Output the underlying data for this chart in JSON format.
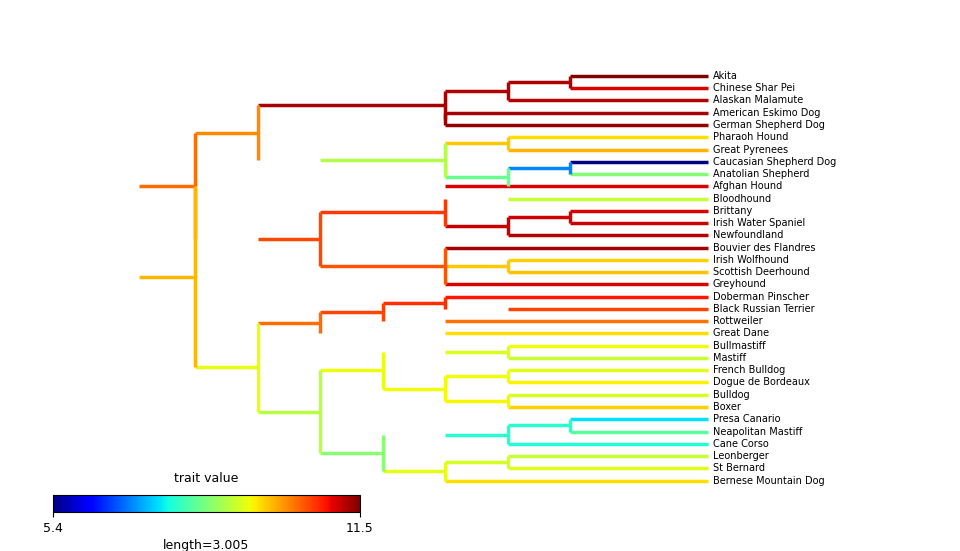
{
  "breeds": [
    "Akita",
    "Chinese Shar Pei",
    "Alaskan Malamute",
    "American Eskimo Dog",
    "German Shepherd Dog",
    "Pharaoh Hound",
    "Great Pyrenees",
    "Caucasian Shepherd Dog",
    "Anatolian Shepherd",
    "Afghan Hound",
    "Bloodhound",
    "Brittany",
    "Irish Water Spaniel",
    "Newfoundland",
    "Bouvier des Flandres",
    "Irish Wolfhound",
    "Scottish Deerhound",
    "Greyhound",
    "Doberman Pinscher",
    "Black Russian Terrier",
    "Rottweiler",
    "Great Dane",
    "Bullmastiff",
    "Mastiff",
    "French Bulldog",
    "Dogue de Bordeaux",
    "Bulldog",
    "Boxer",
    "Presa Canario",
    "Neapolitan Mastiff",
    "Cane Corso",
    "Leonberger",
    "St Bernard",
    "Bernese Mountain Dog"
  ],
  "trait_values": [
    11.5,
    11.0,
    11.2,
    11.3,
    11.4,
    9.5,
    9.8,
    5.4,
    8.5,
    11.0,
    9.0,
    11.0,
    11.1,
    11.2,
    11.3,
    9.6,
    9.7,
    11.0,
    10.8,
    10.5,
    10.2,
    9.5,
    9.3,
    9.0,
    9.2,
    9.4,
    9.1,
    9.6,
    7.5,
    8.2,
    7.8,
    9.0,
    9.2,
    9.5
  ],
  "vmin": 5.4,
  "vmax": 11.5,
  "legend_label": "trait value",
  "legend_length": "length=3.005",
  "lw": 2.5,
  "fig_width": 9.6,
  "fig_height": 5.51,
  "dpi": 100,
  "label_fontsize": 7,
  "colorbar_label_fontsize": 9
}
